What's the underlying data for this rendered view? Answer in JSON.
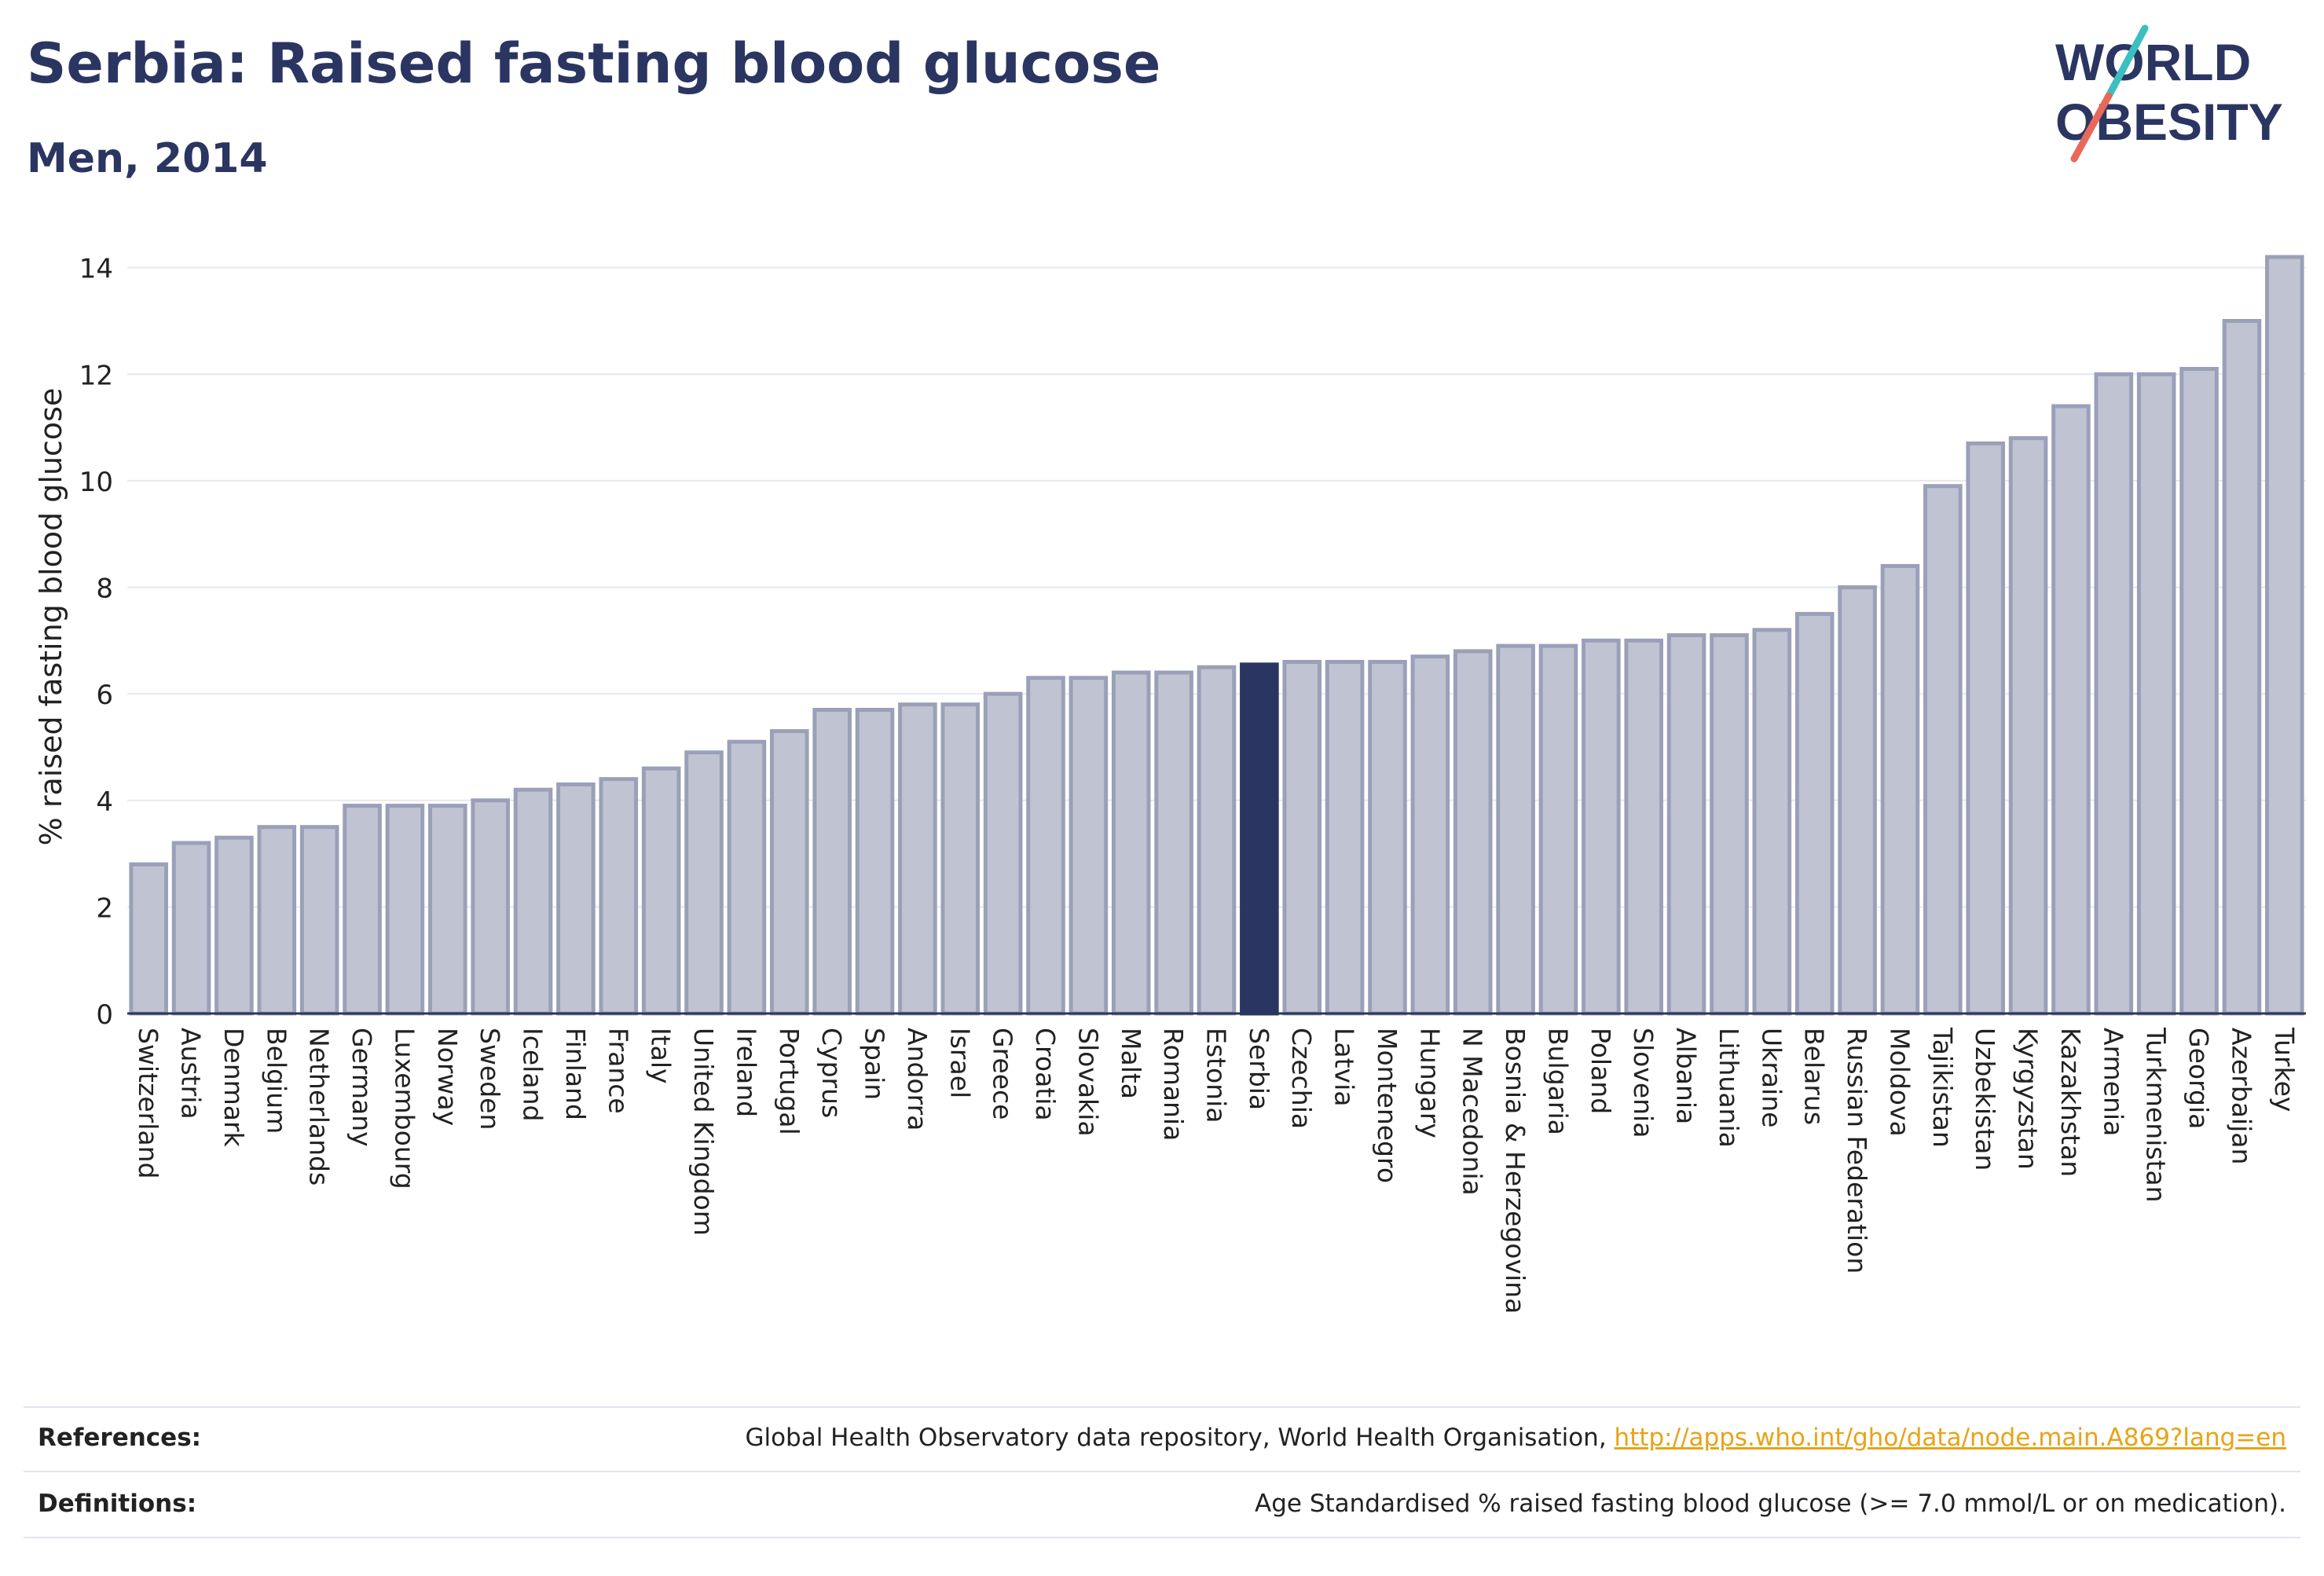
{
  "header": {
    "title": "Serbia: Raised fasting blood glucose",
    "subtitle": "Men, 2014"
  },
  "logo": {
    "line1": "WORLD",
    "line2": "OBESITY",
    "color_text": "#2a3561",
    "color_slash_top": "#3bbfbf",
    "color_slash_bottom": "#e8695a"
  },
  "chart_data": {
    "type": "bar",
    "ylabel": "% raised fasting blood glucose",
    "ylim": [
      0,
      14.6
    ],
    "yticks": [
      0,
      2,
      4,
      6,
      8,
      10,
      12,
      14
    ],
    "grid": true,
    "highlight": "Serbia",
    "bar_color": "#c0c4d2",
    "bar_edge_color": "#9aa0b8",
    "highlight_color": "#2a3561",
    "categories": [
      "Switzerland",
      "Austria",
      "Denmark",
      "Belgium",
      "Netherlands",
      "Germany",
      "Luxembourg",
      "Norway",
      "Sweden",
      "Iceland",
      "Finland",
      "France",
      "Italy",
      "United Kingdom",
      "Ireland",
      "Portugal",
      "Cyprus",
      "Spain",
      "Andorra",
      "Israel",
      "Greece",
      "Croatia",
      "Slovakia",
      "Malta",
      "Romania",
      "Estonia",
      "Serbia",
      "Czechia",
      "Latvia",
      "Montenegro",
      "Hungary",
      "N Macedonia",
      "Bosnia & Herzegovina",
      "Bulgaria",
      "Poland",
      "Slovenia",
      "Albania",
      "Lithuania",
      "Ukraine",
      "Belarus",
      "Russian Federation",
      "Moldova",
      "Tajikistan",
      "Uzbekistan",
      "Kyrgyzstan",
      "Kazakhstan",
      "Armenia",
      "Turkmenistan",
      "Georgia",
      "Azerbaijan",
      "Turkey"
    ],
    "values": [
      2.8,
      3.2,
      3.3,
      3.5,
      3.5,
      3.9,
      3.9,
      3.9,
      4.0,
      4.2,
      4.3,
      4.4,
      4.6,
      4.9,
      5.1,
      5.3,
      5.7,
      5.7,
      5.8,
      5.8,
      6.0,
      6.3,
      6.3,
      6.4,
      6.4,
      6.5,
      6.55,
      6.6,
      6.6,
      6.6,
      6.7,
      6.8,
      6.9,
      6.9,
      7.0,
      7.0,
      7.1,
      7.1,
      7.2,
      7.5,
      8.0,
      8.4,
      9.9,
      10.7,
      10.8,
      11.4,
      12.0,
      12.0,
      12.1,
      13.0,
      14.2
    ]
  },
  "footer": {
    "references_label": "References:",
    "references_text": "Global Health Observatory data repository, World Health Organisation, ",
    "references_link": "http://apps.who.int/gho/data/node.main.A869?lang=en",
    "definitions_label": "Definitions:",
    "definitions_text": "Age Standardised % raised fasting blood glucose (>= 7.0 mmol/L or on medication)."
  }
}
